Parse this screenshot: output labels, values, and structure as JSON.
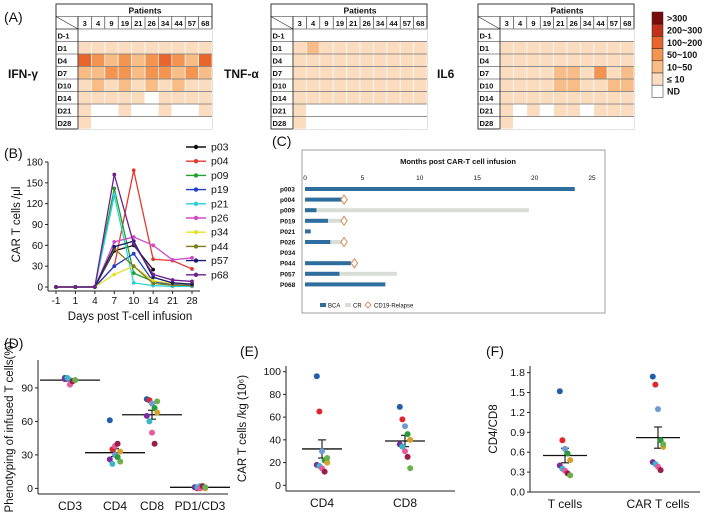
{
  "figure": {
    "panel_labels": [
      "(A)",
      "(B)",
      "(C)",
      "(D)",
      "(E)",
      "(F)"
    ]
  },
  "chart_data": [
    {
      "type": "heatmap",
      "panel": "A",
      "header": "Patients",
      "patients": [
        "3",
        "4",
        "9",
        "19",
        "21",
        "26",
        "34",
        "44",
        "57",
        "68"
      ],
      "days": [
        "D-1",
        "D1",
        "D4",
        "D7",
        "D10",
        "D14",
        "D21",
        "D28"
      ],
      "grids": [
        {
          "label": "IFN-γ",
          "levels": [
            [
              0,
              0,
              0,
              0,
              0,
              0,
              0,
              0,
              0,
              0
            ],
            [
              1,
              1,
              1,
              1,
              1,
              1,
              1,
              1,
              1,
              1
            ],
            [
              4,
              3,
              2,
              3,
              2,
              3,
              4,
              3,
              2,
              4
            ],
            [
              2,
              2,
              3,
              3,
              2,
              3,
              3,
              2,
              3,
              2
            ],
            [
              1,
              2,
              1,
              2,
              1,
              2,
              1,
              2,
              1,
              1
            ],
            [
              1,
              1,
              1,
              1,
              1,
              0,
              1,
              1,
              1,
              1
            ],
            [
              1,
              0,
              0,
              1,
              0,
              0,
              1,
              0,
              0,
              1
            ],
            [
              1,
              0,
              0,
              0,
              0,
              0,
              0,
              0,
              0,
              0
            ]
          ]
        },
        {
          "label": "TNF-α",
          "levels": [
            [
              0,
              0,
              0,
              0,
              0,
              0,
              0,
              0,
              0,
              0
            ],
            [
              1,
              2,
              1,
              1,
              1,
              1,
              1,
              1,
              1,
              1
            ],
            [
              1,
              1,
              1,
              1,
              1,
              1,
              1,
              1,
              1,
              1
            ],
            [
              1,
              1,
              1,
              1,
              1,
              1,
              1,
              1,
              1,
              1
            ],
            [
              1,
              1,
              1,
              1,
              1,
              1,
              1,
              1,
              1,
              1
            ],
            [
              1,
              1,
              1,
              1,
              1,
              1,
              1,
              1,
              1,
              1
            ],
            [
              1,
              0,
              0,
              0,
              0,
              0,
              0,
              0,
              0,
              0
            ],
            [
              1,
              0,
              0,
              0,
              0,
              0,
              0,
              0,
              0,
              0
            ]
          ]
        },
        {
          "label": "IL6",
          "levels": [
            [
              0,
              0,
              0,
              0,
              0,
              0,
              0,
              0,
              0,
              0
            ],
            [
              1,
              1,
              1,
              1,
              1,
              1,
              1,
              1,
              1,
              1
            ],
            [
              1,
              1,
              1,
              1,
              1,
              1,
              1,
              1,
              1,
              1
            ],
            [
              1,
              1,
              1,
              1,
              2,
              2,
              1,
              3,
              1,
              2
            ],
            [
              1,
              1,
              1,
              1,
              2,
              2,
              1,
              1,
              2,
              2
            ],
            [
              1,
              1,
              1,
              1,
              1,
              1,
              1,
              1,
              1,
              1
            ],
            [
              1,
              0,
              1,
              0,
              1,
              1,
              0,
              1,
              1,
              1
            ],
            [
              1,
              0,
              0,
              0,
              0,
              0,
              0,
              0,
              0,
              0
            ]
          ]
        }
      ],
      "legend": [
        {
          "label": ">300",
          "color": "#7a0c0c"
        },
        {
          "label": "200~300",
          "color": "#c0311c"
        },
        {
          "label": "100~200",
          "color": "#e8652e"
        },
        {
          "label": "50~100",
          "color": "#f39450"
        },
        {
          "label": "10~50",
          "color": "#f8bc87"
        },
        {
          "label": "≤ 10",
          "color": "#fcdcbf"
        },
        {
          "label": "ND",
          "color": "#ffffff"
        }
      ]
    },
    {
      "type": "line",
      "panel": "B",
      "xlabel": "Days post T-cell infusion",
      "ylabel": "CAR T cells /μl",
      "x": [
        -1,
        1,
        4,
        7,
        10,
        14,
        21,
        28
      ],
      "x_ticks": [
        "-1",
        "1",
        "4",
        "7",
        "10",
        "14",
        "21",
        "28"
      ],
      "y_ticks": [
        0,
        30,
        60,
        90,
        120,
        150,
        180
      ],
      "ylim": [
        0,
        180
      ],
      "series": [
        {
          "name": "p03",
          "color": "#111111",
          "values": [
            0,
            0,
            0,
            52,
            60,
            25,
            null,
            null
          ]
        },
        {
          "name": "p04",
          "color": "#e23b2e",
          "values": [
            0,
            0,
            0,
            30,
            168,
            40,
            38,
            26
          ]
        },
        {
          "name": "p09",
          "color": "#22a12a",
          "values": [
            0,
            0,
            0,
            142,
            20,
            8,
            3,
            2
          ]
        },
        {
          "name": "p19",
          "color": "#1f3fc9",
          "values": [
            0,
            0,
            0,
            30,
            48,
            8,
            4,
            2
          ]
        },
        {
          "name": "p21",
          "color": "#2ad1d9",
          "values": [
            0,
            0,
            0,
            132,
            6,
            2,
            1,
            1
          ]
        },
        {
          "name": "p26",
          "color": "#d04bc9",
          "values": [
            0,
            0,
            0,
            65,
            72,
            60,
            39,
            42
          ]
        },
        {
          "name": "p34",
          "color": "#e8e02a",
          "values": [
            0,
            0,
            0,
            18,
            30,
            9,
            5,
            5
          ]
        },
        {
          "name": "p44",
          "color": "#7c7c1e",
          "values": [
            0,
            0,
            0,
            55,
            30,
            5,
            3,
            2
          ]
        },
        {
          "name": "p57",
          "color": "#1c1c6e",
          "values": [
            0,
            0,
            0,
            58,
            66,
            14,
            6,
            4
          ]
        },
        {
          "name": "p68",
          "color": "#6d1f8e",
          "values": [
            0,
            0,
            0,
            162,
            62,
            18,
            10,
            8
          ]
        }
      ]
    },
    {
      "type": "bar",
      "panel": "C",
      "title": "Months post CAR-T cell infusion",
      "x_ticks": [
        0,
        5,
        10,
        15,
        20,
        25
      ],
      "xlim": [
        0,
        25
      ],
      "patients": [
        "p003",
        "p004",
        "p009",
        "P019",
        "P021",
        "P026",
        "P034",
        "P044",
        "P057",
        "P068"
      ],
      "bca": [
        23.5,
        3.2,
        1.0,
        2.0,
        0.5,
        2.2,
        0,
        4.0,
        3.0,
        7.0
      ],
      "cr_end": [
        23.5,
        3.2,
        19.5,
        3.5,
        0.5,
        3.5,
        0,
        4.0,
        8.0,
        7.0
      ],
      "relapse": [
        null,
        3.4,
        null,
        3.4,
        null,
        3.4,
        null,
        4.3,
        null,
        null
      ],
      "legend": {
        "bca": "BCA",
        "cr": "CR",
        "relapse": "CD19-Relapse"
      },
      "colors": {
        "bca": "#2e6e9e",
        "cr": "#d8ddd6",
        "relapse": "#d9895a"
      }
    },
    {
      "type": "scatter",
      "panel": "D",
      "ylabel": "Phenotyping of infused T cells(%)",
      "categories": [
        "CD3",
        "CD4",
        "CD8",
        "PD1/CD3"
      ],
      "y_ticks": [
        0,
        30,
        60,
        90
      ],
      "ylim": [
        -5,
        115
      ],
      "means": [
        97,
        32,
        66,
        1
      ],
      "sem": [
        1,
        3.5,
        4,
        0.4
      ],
      "points": [
        [
          99,
          98,
          97,
          96,
          97,
          98,
          99,
          93,
          96,
          97
        ],
        [
          61,
          35,
          30,
          28,
          33,
          26,
          22,
          38,
          40,
          24
        ],
        [
          80,
          79,
          76,
          72,
          68,
          65,
          60,
          50,
          40,
          78
        ],
        [
          1,
          0,
          2,
          1,
          0,
          1,
          1,
          0,
          2,
          1
        ]
      ]
    },
    {
      "type": "scatter",
      "panel": "E",
      "ylabel": "CAR T cells /kg (10⁶)",
      "categories": [
        "CD4",
        "CD8"
      ],
      "y_ticks": [
        0,
        20,
        40,
        60,
        80,
        100
      ],
      "ylim": [
        -5,
        105
      ],
      "means": [
        32,
        39
      ],
      "sem": [
        8,
        5
      ],
      "points": [
        [
          96,
          65,
          30,
          22,
          20,
          18,
          17,
          15,
          12,
          24
        ],
        [
          69,
          58,
          52,
          45,
          40,
          36,
          34,
          30,
          25,
          15
        ]
      ]
    },
    {
      "type": "scatter",
      "panel": "F",
      "ylabel": "CD4/CD8",
      "categories": [
        "T cells",
        "CAR T cells"
      ],
      "y_ticks": [
        0.0,
        0.3,
        0.6,
        0.9,
        1.2,
        1.5,
        1.8
      ],
      "ylim": [
        0,
        1.9
      ],
      "means": [
        0.55,
        0.82
      ],
      "sem": [
        0.11,
        0.16
      ],
      "points": [
        [
          1.52,
          0.78,
          0.65,
          0.58,
          0.48,
          0.4,
          0.35,
          0.32,
          0.28,
          0.25
        ],
        [
          1.74,
          1.62,
          1.25,
          0.78,
          0.68,
          0.45,
          0.42,
          0.38,
          0.33,
          0.72
        ]
      ]
    }
  ],
  "dot_palette": [
    "#1f5fa8",
    "#e0262a",
    "#6e9bd6",
    "#2a9b3a",
    "#d6a02a",
    "#7b2d9e",
    "#3ab6c9",
    "#e85aa0",
    "#9a1e4a",
    "#6ab04c"
  ]
}
